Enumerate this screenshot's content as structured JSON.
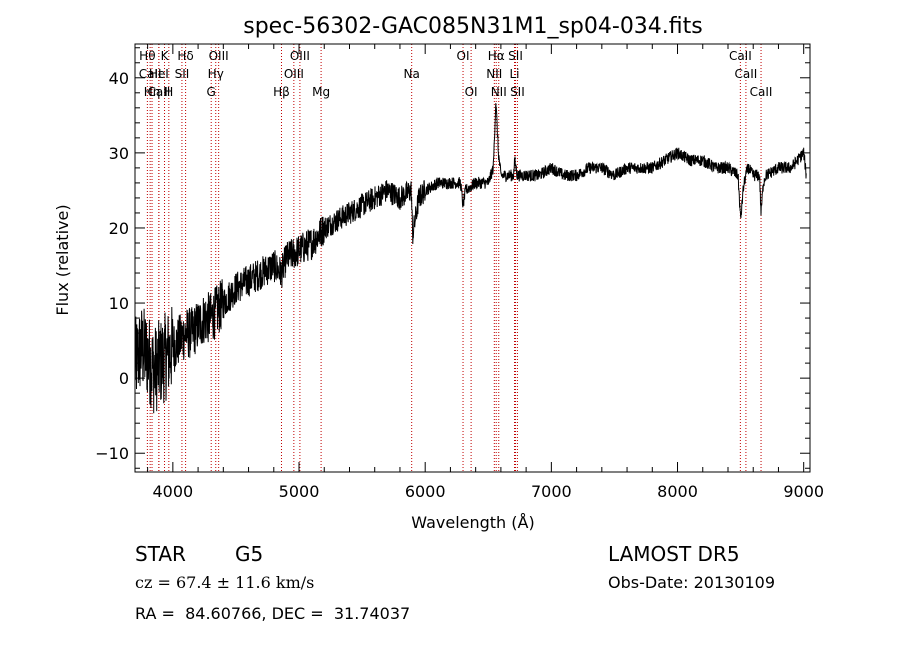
{
  "chart_data": {
    "type": "line",
    "title": "spec-56302-GAC085N31M1_sp04-034.fits",
    "xlabel": "Wavelength (Å)",
    "ylabel": "Flux (relative)",
    "xlim": [
      3700,
      9050
    ],
    "ylim": [
      -12.5,
      44.5
    ],
    "xticks": [
      4000,
      5000,
      6000,
      7000,
      8000,
      9000
    ],
    "yticks": [
      -10,
      0,
      10,
      20,
      30,
      40
    ],
    "grid": false,
    "series": [
      {
        "x": [
          3700,
          3750,
          3800,
          3850,
          3900,
          3950,
          4000,
          4050,
          4100,
          4150,
          4200,
          4250,
          4300,
          4350,
          4400,
          4450,
          4500,
          4600,
          4700,
          4800,
          4860,
          4900,
          5000,
          5100,
          5200,
          5300,
          5400,
          5500,
          5600,
          5700,
          5800,
          5890,
          5900,
          5950,
          6000,
          6100,
          6200,
          6280,
          6300,
          6320,
          6400,
          6500,
          6540,
          6560,
          6580,
          6600,
          6700,
          6710,
          6730,
          6800,
          6900,
          7000,
          7100,
          7200,
          7300,
          7400,
          7500,
          7600,
          7700,
          7800,
          7900,
          8000,
          8100,
          8200,
          8300,
          8400,
          8480,
          8500,
          8520,
          8540,
          8560,
          8600,
          8650,
          8662,
          8680,
          8700,
          8800,
          8900,
          8950,
          9000,
          9020
        ],
        "values": [
          2,
          4,
          3,
          1,
          2,
          3,
          4,
          5,
          6,
          6,
          7,
          8,
          8,
          9,
          10,
          11,
          12,
          13,
          14,
          15,
          14,
          16,
          17,
          18,
          20,
          21,
          22,
          23,
          24,
          25,
          24,
          25,
          19,
          24,
          25,
          26,
          26,
          26,
          23,
          25,
          26,
          26,
          28,
          37,
          30,
          27,
          27,
          29,
          27,
          27,
          27,
          28,
          27,
          27,
          28,
          28,
          27,
          28,
          28,
          28,
          29,
          30,
          29,
          29,
          28,
          28,
          27,
          21,
          25,
          27,
          28,
          27,
          27,
          22,
          26,
          27,
          28,
          28,
          29,
          30,
          27
        ]
      }
    ],
    "lines": [
      {
        "wl": 3798,
        "label": "Hθ",
        "row": 0
      },
      {
        "wl": 3820,
        "label": "CaII",
        "row": 1
      },
      {
        "wl": 3835,
        "label": "Hη",
        "row": 2
      },
      {
        "wl": 3889,
        "label": "CaII",
        "row": 2
      },
      {
        "wl": 3934,
        "label": "K",
        "row": 0
      },
      {
        "wl": 3889,
        "label": "HeI",
        "row": 1
      },
      {
        "wl": 3968,
        "label": "H",
        "row": 2
      },
      {
        "wl": 4101,
        "label": "Hδ",
        "row": 0
      },
      {
        "wl": 4072,
        "label": "SII",
        "row": 1
      },
      {
        "wl": 4340,
        "label": "Hγ",
        "row": 1
      },
      {
        "wl": 4304,
        "label": "G",
        "row": 2
      },
      {
        "wl": 4363,
        "label": "OIII",
        "row": 0
      },
      {
        "wl": 4861,
        "label": "Hβ",
        "row": 2
      },
      {
        "wl": 4959,
        "label": "OIII",
        "row": 1
      },
      {
        "wl": 5007,
        "label": "OIII",
        "row": 0
      },
      {
        "wl": 5175,
        "label": "Mg",
        "row": 2
      },
      {
        "wl": 5893,
        "label": "Na",
        "row": 1
      },
      {
        "wl": 6300,
        "label": "OI",
        "row": 0
      },
      {
        "wl": 6364,
        "label": "OI",
        "row": 2
      },
      {
        "wl": 6548,
        "label": "NII",
        "row": 1
      },
      {
        "wl": 6563,
        "label": "Hα",
        "row": 0
      },
      {
        "wl": 6583,
        "label": "NII",
        "row": 2
      },
      {
        "wl": 6708,
        "label": "Li",
        "row": 1
      },
      {
        "wl": 6716,
        "label": "SII",
        "row": 0
      },
      {
        "wl": 6731,
        "label": "SII",
        "row": 2
      },
      {
        "wl": 8498,
        "label": "CaII",
        "row": 0
      },
      {
        "wl": 8542,
        "label": "CaII",
        "row": 1
      },
      {
        "wl": 8662,
        "label": "CaII",
        "row": 2
      }
    ]
  },
  "info": {
    "class_label": "STAR",
    "subclass": "G5",
    "survey": "LAMOST DR5",
    "cz": "cz = 67.4 ± 11.6 km/s",
    "obs_date": "Obs-Date: 20130109",
    "radec": "RA =  84.60766, DEC =  31.74037"
  }
}
